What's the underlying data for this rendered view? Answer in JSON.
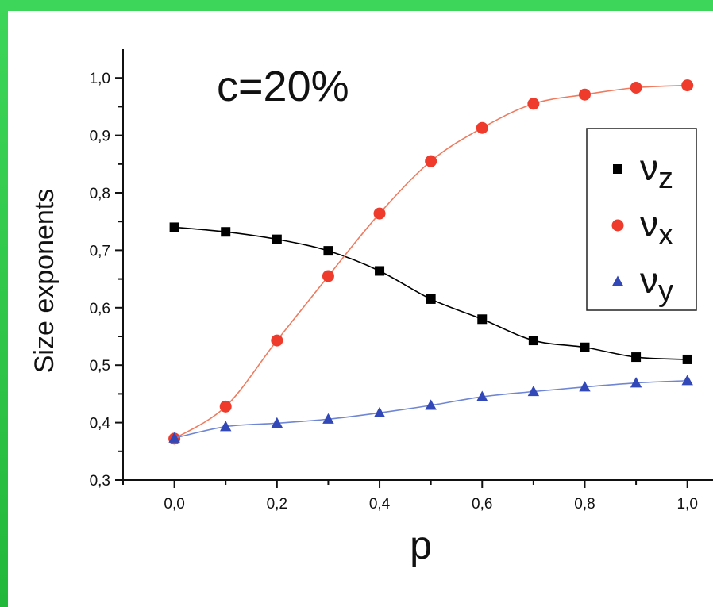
{
  "chart_data": {
    "type": "line",
    "annotation": "c=20%",
    "xlabel": "p",
    "ylabel": "Size exponents",
    "xlim": [
      -0.1,
      1.05
    ],
    "ylim": [
      0.3,
      1.05
    ],
    "xticks": [
      0.0,
      0.2,
      0.4,
      0.6,
      0.8,
      1.0
    ],
    "xtick_labels": [
      "0,0",
      "0,2",
      "0,4",
      "0,6",
      "0,8",
      "1,0"
    ],
    "yticks": [
      0.3,
      0.4,
      0.5,
      0.6,
      0.7,
      0.8,
      0.9,
      1.0
    ],
    "ytick_labels": [
      "0,3",
      "0,4",
      "0,5",
      "0,6",
      "0,7",
      "0,8",
      "0,9",
      "1,0"
    ],
    "grid": false,
    "legend_position": "right",
    "x": [
      0.0,
      0.1,
      0.2,
      0.3,
      0.4,
      0.5,
      0.6,
      0.7,
      0.8,
      0.9,
      1.0
    ],
    "series": [
      {
        "name": "νz",
        "base": "ν",
        "sub": "z",
        "marker": "square",
        "marker_color": "#000000",
        "line_color": "#000000",
        "values": [
          0.74,
          0.732,
          0.719,
          0.699,
          0.664,
          0.615,
          0.58,
          0.543,
          0.531,
          0.514,
          0.51
        ]
      },
      {
        "name": "νx",
        "base": "ν",
        "sub": "x",
        "marker": "circle",
        "marker_color": "#ee3b2c",
        "line_color": "#f07a5e",
        "values": [
          0.372,
          0.428,
          0.543,
          0.655,
          0.764,
          0.855,
          0.913,
          0.955,
          0.971,
          0.983,
          0.987
        ]
      },
      {
        "name": "νy",
        "base": "ν",
        "sub": "y",
        "marker": "triangle",
        "marker_color": "#3348b8",
        "line_color": "#6f86d4",
        "values": [
          0.373,
          0.393,
          0.399,
          0.406,
          0.417,
          0.43,
          0.445,
          0.454,
          0.462,
          0.469,
          0.473
        ]
      }
    ]
  }
}
